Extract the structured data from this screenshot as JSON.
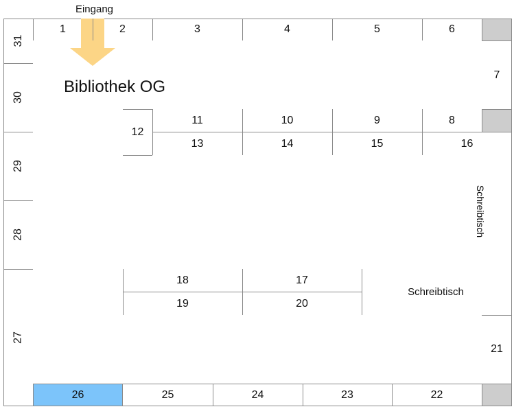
{
  "title": "Bibliothek OG",
  "entrance_label": "Eingang",
  "desk_label": "Schreibtisch",
  "colors": {
    "selected": "#7cc4fa",
    "blocked": "#cdcdcd",
    "arrow": "#fcd586"
  },
  "selected_seat": "26",
  "seats": {
    "s1": "1",
    "s2": "2",
    "s3": "3",
    "s4": "4",
    "s5": "5",
    "s6": "6",
    "s7": "7",
    "s8": "8",
    "s9": "9",
    "s10": "10",
    "s11": "11",
    "s12": "12",
    "s13": "13",
    "s14": "14",
    "s15": "15",
    "s16": "16",
    "s17": "17",
    "s18": "18",
    "s19": "19",
    "s20": "20",
    "s21": "21",
    "s22": "22",
    "s23": "23",
    "s24": "24",
    "s25": "25",
    "s26": "26",
    "s27": "27",
    "s28": "28",
    "s29": "29",
    "s30": "30",
    "s31": "31"
  }
}
